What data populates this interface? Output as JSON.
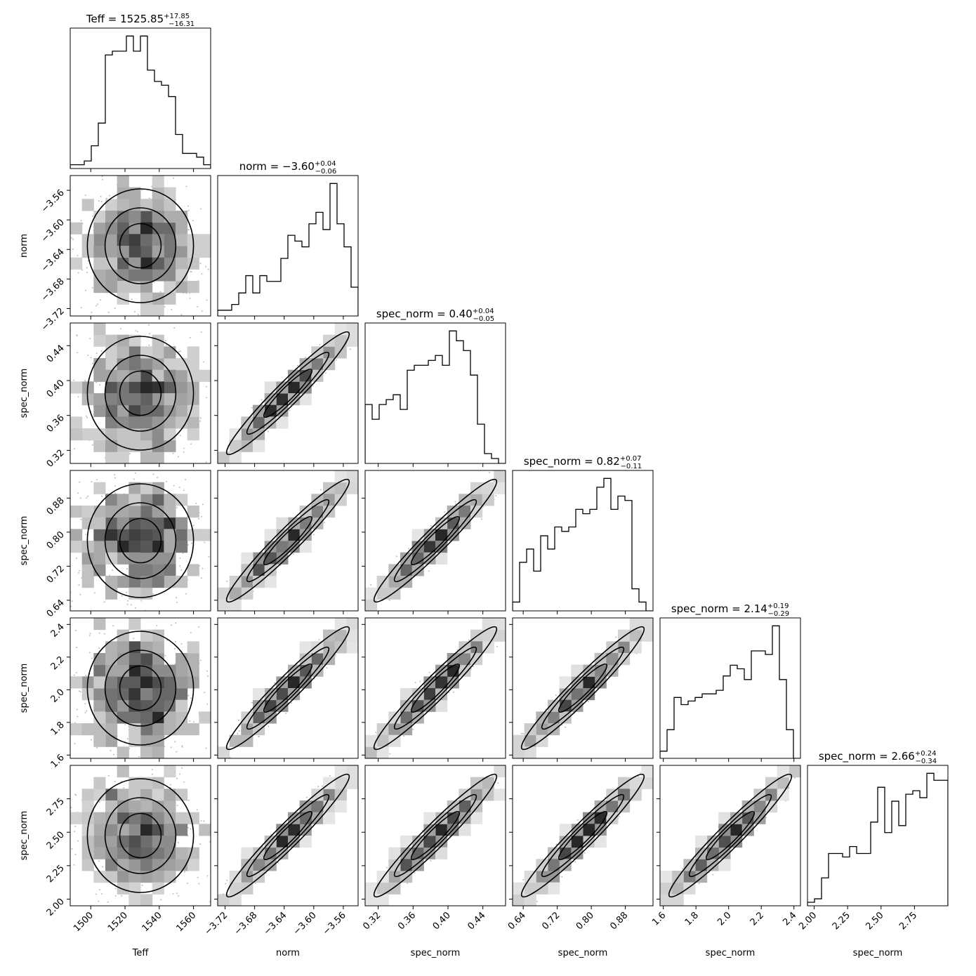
{
  "chart_data": {
    "type": "corner",
    "params": [
      {
        "label": "Teff",
        "range": [
          1488,
          1570
        ],
        "ticks": [
          1500,
          1520,
          1540,
          1560
        ],
        "tick_labels": [
          "1500",
          "1520",
          "1540",
          "1560"
        ],
        "title_name": "Teff",
        "median": "1525.85",
        "err_plus": "+17.85",
        "err_minus": "−16.31",
        "hist": [
          1,
          1,
          2,
          6,
          12,
          30,
          31,
          31,
          35,
          31,
          35,
          26,
          23,
          22,
          19,
          9,
          4,
          4,
          3,
          1
        ]
      },
      {
        "label": "norm",
        "range": [
          -3.73,
          -3.54
        ],
        "ticks": [
          -3.72,
          -3.68,
          -3.64,
          -3.6,
          -3.56
        ],
        "tick_labels": [
          "−3.72",
          "−3.68",
          "−3.64",
          "−3.60",
          "−3.56"
        ],
        "title_name": "norm",
        "median": "−3.60",
        "err_plus": "+0.04",
        "err_minus": "−0.06",
        "hist": [
          1,
          1,
          2,
          4,
          7,
          4,
          7,
          6,
          6,
          10,
          14,
          13,
          12,
          16,
          18,
          15,
          23,
          16,
          12,
          5
        ]
      },
      {
        "label": "spec_norm",
        "range": [
          0.305,
          0.466
        ],
        "ticks": [
          0.32,
          0.36,
          0.4,
          0.44
        ],
        "tick_labels": [
          "0.32",
          "0.36",
          "0.40",
          "0.44"
        ],
        "title_name": "spec_norm",
        "median": "0.40",
        "err_plus": "+0.04",
        "err_minus": "−0.05",
        "hist": [
          12,
          9,
          12,
          13,
          14,
          11,
          19,
          20,
          20,
          21,
          22,
          20,
          27,
          25,
          23,
          18,
          8,
          2,
          1,
          0
        ]
      },
      {
        "label": "spec_norm",
        "range": [
          0.615,
          0.945
        ],
        "ticks": [
          0.64,
          0.72,
          0.8,
          0.88
        ],
        "tick_labels": [
          "0.64",
          "0.72",
          "0.80",
          "0.88"
        ],
        "title_name": "spec_norm",
        "median": "0.82",
        "err_plus": "+0.07",
        "err_minus": "−0.11",
        "hist": [
          2,
          11,
          14,
          9,
          17,
          14,
          19,
          18,
          19,
          23,
          22,
          23,
          28,
          30,
          23,
          26,
          25,
          5,
          2,
          0
        ]
      },
      {
        "label": "spec_norm",
        "range": [
          1.58,
          2.44
        ],
        "ticks": [
          1.6,
          1.8,
          2.0,
          2.2,
          2.4
        ],
        "tick_labels": [
          "1.6",
          "1.8",
          "2.0",
          "2.2",
          "2.4"
        ],
        "title_name": "spec_norm",
        "median": "2.14",
        "err_plus": "+0.19",
        "err_minus": "−0.29",
        "hist": [
          2,
          8,
          17,
          15,
          16,
          17,
          18,
          18,
          19,
          23,
          26,
          25,
          22,
          30,
          30,
          29,
          37,
          22,
          8,
          0
        ]
      },
      {
        "label": "spec_norm",
        "range": [
          1.95,
          3.0
        ],
        "ticks": [
          2.0,
          2.25,
          2.5,
          2.75
        ],
        "tick_labels": [
          "2.00",
          "2.25",
          "2.50",
          "2.75"
        ],
        "title_name": "spec_norm",
        "median": "2.66",
        "err_plus": "+0.24",
        "err_minus": "−0.34",
        "hist": [
          1,
          2,
          8,
          15,
          15,
          14,
          17,
          15,
          15,
          24,
          34,
          21,
          30,
          23,
          32,
          33,
          31,
          38,
          36,
          36
        ]
      }
    ]
  }
}
